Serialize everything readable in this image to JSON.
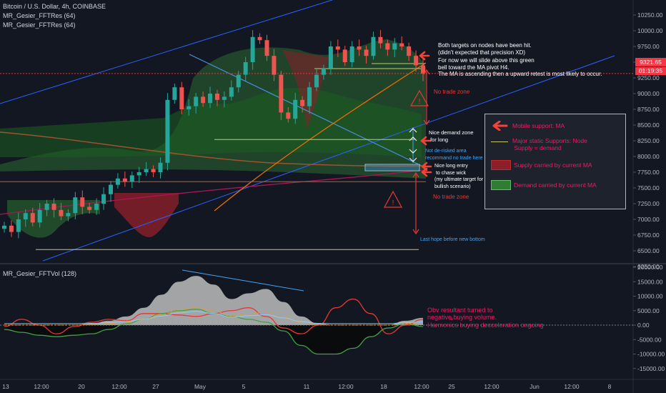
{
  "header": {
    "title": "Bitcoin / U.S. Dollar, 4h, COINBASE",
    "indicator1": "MR_Gesier_FFTRes (64)",
    "indicator2": "MR_Gesier_FFTRes (64)",
    "sub_indicator": "MR_Gesier_FFTVol (128)"
  },
  "price_tag": {
    "value": "9321.65",
    "countdown": "01:19:35"
  },
  "annotations": {
    "targets_note": "Both targets on nodes have been hit.\n(didn't expected that precision XD)",
    "slide_note": "For now we will slide above this green\nbell toward the MA pivot H4.\nThe MA is ascending then a upward retest is most likely to occur.",
    "no_trade_1": "No trade zone",
    "no_trade_2": "No trade zone",
    "demand_zone": "Nice demand zone\n for long",
    "not_derisked": "Not de-risked area\nrecommand no trade here",
    "long_entry": "Nice long entry\n to chase wick\n(my ultimate target for\nbullish scenario)",
    "last_hope": "Last hope before new bottom",
    "obv_note": "Obv resultant turned to\nnegative buying volume.",
    "harmonics_note": "Harmonics buying decceleration ongoing",
    "plus": "+"
  },
  "legend": {
    "mobile_support": "Mobile support: MA",
    "static_supports": "Major static Supports: Node\n Supply = demand",
    "supply": "Supply carried by current MA",
    "demand": "Demand carried by current MA"
  },
  "colors": {
    "background": "#131722",
    "up": "#26a69a",
    "down": "#ef5350",
    "annotation_red": "#e91e63",
    "node_line": "#c8c86a",
    "channel": "#2962ff",
    "green_bell": "#2e7d32",
    "red_bell": "#8b1f2a",
    "price_tag": "#f23645"
  },
  "chart_data": [
    {
      "type": "line",
      "title": "Bitcoin / U.S. Dollar, 4h, COINBASE",
      "x_tick_labels": [
        "13",
        "12:00",
        "20",
        "12:00",
        "27",
        "May",
        "5",
        "11",
        "12:00",
        "18",
        "12:00",
        "25",
        "12:00",
        "Jun",
        "12:00",
        "8"
      ],
      "y_tick_labels": [
        "10250.00",
        "10000.00",
        "9750.00",
        "9500.00",
        "9250.00",
        "9000.00",
        "8750.00",
        "8500.00",
        "8250.00",
        "8000.00",
        "7750.00",
        "7500.00",
        "7250.00",
        "7000.00",
        "6750.00",
        "6500.00",
        "6250.00"
      ],
      "ylim": [
        6100,
        10350
      ],
      "close_series": {
        "name": "BTC close (approx.)",
        "values": [
          6900,
          6800,
          7000,
          7100,
          6950,
          7150,
          7250,
          7150,
          7050,
          7100,
          7350,
          7200,
          7150,
          7250,
          7400,
          7550,
          7650,
          7600,
          7700,
          7750,
          7800,
          7750,
          7900,
          8900,
          9100,
          8750,
          8800,
          8950,
          8850,
          9000,
          8900,
          8950,
          9100,
          9300,
          9500,
          9900,
          9850,
          9600,
          9300,
          8700,
          8600,
          8900,
          8800,
          9100,
          9300,
          9400,
          9750,
          9700,
          9500,
          9750,
          9700,
          9600,
          9900,
          9800,
          9700,
          9800,
          9750,
          9600,
          9450,
          9320
        ]
      },
      "horizontal_levels": [
        {
          "label": "node",
          "value": 9320
        },
        {
          "label": "node",
          "value": 8270
        },
        {
          "label": "node",
          "value": 7600
        },
        {
          "label": "last hope",
          "value": 6520
        }
      ]
    },
    {
      "type": "area",
      "title": "MR_Gesier_FFTVol (128)",
      "y_tick_labels": [
        "20000.00",
        "15000.00",
        "10000.00",
        "5000.00",
        "0.00",
        "-5000.00",
        "-10000.00",
        "-15000.00"
      ],
      "ylim": [
        -16000,
        21000
      ],
      "series": [
        {
          "name": "volume envelope",
          "values": [
            0,
            0,
            0,
            0,
            0,
            500,
            1500,
            3000,
            6000,
            10500,
            15000,
            17000,
            14000,
            9000,
            11000,
            12500,
            8000,
            3000,
            500,
            0,
            0,
            0,
            0,
            1500,
            2500
          ]
        },
        {
          "name": "harmonic (red)",
          "values": [
            -500,
            2000,
            0,
            -3000,
            -500,
            1000,
            2000,
            1500,
            4000,
            4000,
            3500,
            3000,
            4000,
            5000,
            6000,
            3000,
            -1000,
            -3000,
            0,
            6000,
            9000,
            4000,
            -3000,
            0,
            2000
          ]
        },
        {
          "name": "obv resultant (green)",
          "values": [
            -1500,
            -2500,
            -3500,
            -4000,
            -3500,
            -3000,
            -1500,
            500,
            2000,
            4000,
            5000,
            5500,
            4000,
            3000,
            2000,
            1000,
            -2000,
            -7000,
            -10000,
            -10000,
            -8000,
            -4000,
            -1000,
            500,
            -500
          ]
        }
      ]
    }
  ]
}
